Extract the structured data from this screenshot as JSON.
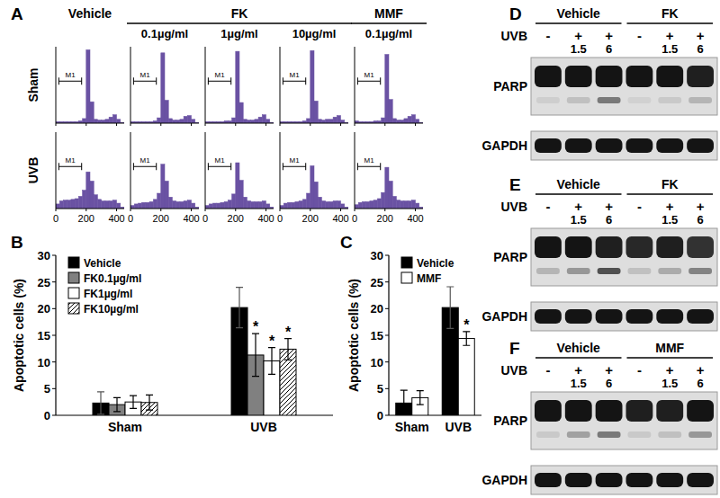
{
  "panel_labels": [
    "A",
    "B",
    "C"
  ],
  "panel_A": {
    "row_labels": [
      "Sham",
      "UVB"
    ],
    "column_labels": [
      "Vehicle",
      "0.1µg/ml",
      "1µg/ml",
      "10µg/ml",
      "0.1µg/ml"
    ],
    "column_groups": [
      {
        "text": "FK",
        "columns": [
          1,
          2,
          3
        ]
      },
      {
        "text": "MMF",
        "columns": [
          4
        ]
      }
    ]
  },
  "chart_data": [
    {
      "type": "histogram",
      "color": "#6a52a3",
      "bins": [
        0,
        25,
        50,
        75,
        100,
        125,
        150,
        175,
        200,
        225,
        250,
        275,
        300,
        325,
        350,
        375,
        400,
        425,
        450
      ],
      "counts": [
        2,
        2,
        2,
        2,
        2,
        2,
        3,
        6,
        96,
        28,
        5,
        4,
        4,
        5,
        8,
        11,
        5,
        1
      ],
      "xlim": [
        0,
        450
      ],
      "xticks": [
        0,
        200,
        400
      ],
      "ylim": [
        0,
        100
      ],
      "yticks": [],
      "tick_labels": false,
      "annotations": [
        {
          "text": "M1",
          "x": [
            20,
            170
          ]
        }
      ]
    },
    {
      "type": "histogram",
      "color": "#6a52a3",
      "bins": [
        0,
        25,
        50,
        75,
        100,
        125,
        150,
        175,
        200,
        225,
        250,
        275,
        300,
        325,
        350,
        375,
        400,
        425,
        450
      ],
      "counts": [
        2,
        2,
        2,
        2,
        2,
        2,
        3,
        7,
        92,
        30,
        6,
        4,
        4,
        5,
        9,
        10,
        5,
        1
      ],
      "xlim": [
        0,
        450
      ],
      "xticks": [
        0,
        200,
        400
      ],
      "ylim": [
        0,
        100
      ],
      "yticks": [],
      "tick_labels": false,
      "annotations": [
        {
          "text": "M1",
          "x": [
            20,
            170
          ]
        }
      ]
    },
    {
      "type": "histogram",
      "color": "#6a52a3",
      "bins": [
        0,
        25,
        50,
        75,
        100,
        125,
        150,
        175,
        200,
        225,
        250,
        275,
        300,
        325,
        350,
        375,
        400,
        425,
        450
      ],
      "counts": [
        2,
        2,
        2,
        2,
        2,
        3,
        3,
        7,
        94,
        27,
        5,
        4,
        4,
        5,
        8,
        11,
        5,
        1
      ],
      "xlim": [
        0,
        450
      ],
      "xticks": [
        0,
        200,
        400
      ],
      "ylim": [
        0,
        100
      ],
      "yticks": [],
      "tick_labels": false,
      "annotations": [
        {
          "text": "M1",
          "x": [
            20,
            170
          ]
        }
      ]
    },
    {
      "type": "histogram",
      "color": "#6a52a3",
      "bins": [
        0,
        25,
        50,
        75,
        100,
        125,
        150,
        175,
        200,
        225,
        250,
        275,
        300,
        325,
        350,
        375,
        400,
        425,
        450
      ],
      "counts": [
        2,
        2,
        2,
        2,
        2,
        2,
        3,
        6,
        95,
        29,
        5,
        4,
        5,
        5,
        8,
        10,
        4,
        1
      ],
      "xlim": [
        0,
        450
      ],
      "xticks": [
        0,
        200,
        400
      ],
      "ylim": [
        0,
        100
      ],
      "yticks": [],
      "tick_labels": false,
      "annotations": [
        {
          "text": "M1",
          "x": [
            20,
            170
          ]
        }
      ]
    },
    {
      "type": "histogram",
      "color": "#6a52a3",
      "bins": [
        0,
        25,
        50,
        75,
        100,
        125,
        150,
        175,
        200,
        225,
        250,
        275,
        300,
        325,
        350,
        375,
        400,
        425,
        450
      ],
      "counts": [
        3,
        2,
        2,
        2,
        2,
        3,
        3,
        7,
        90,
        31,
        6,
        4,
        4,
        6,
        9,
        11,
        5,
        1
      ],
      "xlim": [
        0,
        450
      ],
      "xticks": [
        0,
        200,
        400
      ],
      "ylim": [
        0,
        100
      ],
      "yticks": [],
      "tick_labels": false,
      "annotations": [
        {
          "text": "M1",
          "x": [
            20,
            170
          ]
        }
      ]
    },
    {
      "type": "histogram",
      "color": "#6a52a3",
      "bins": [
        0,
        25,
        50,
        75,
        100,
        125,
        150,
        175,
        200,
        225,
        250,
        275,
        300,
        325,
        350,
        375,
        400,
        425,
        450
      ],
      "counts": [
        6,
        10,
        11,
        11,
        12,
        13,
        16,
        24,
        48,
        36,
        18,
        12,
        10,
        10,
        10,
        11,
        7,
        2
      ],
      "xlim": [
        0,
        450
      ],
      "xticks": [
        0,
        200,
        400
      ],
      "ylim": [
        0,
        100
      ],
      "yticks": [],
      "tick_labels": "x",
      "annotations": [
        {
          "text": "M1",
          "x": [
            20,
            170
          ]
        }
      ]
    },
    {
      "type": "histogram",
      "color": "#6a52a3",
      "bins": [
        0,
        25,
        50,
        75,
        100,
        125,
        150,
        175,
        200,
        225,
        250,
        275,
        300,
        325,
        350,
        375,
        400,
        425,
        450
      ],
      "counts": [
        4,
        6,
        7,
        8,
        8,
        9,
        12,
        20,
        58,
        36,
        15,
        10,
        9,
        9,
        10,
        11,
        7,
        2
      ],
      "xlim": [
        0,
        450
      ],
      "xticks": [
        0,
        200,
        400
      ],
      "ylim": [
        0,
        100
      ],
      "yticks": [],
      "tick_labels": "x",
      "annotations": [
        {
          "text": "M1",
          "x": [
            20,
            170
          ]
        }
      ]
    },
    {
      "type": "histogram",
      "color": "#6a52a3",
      "bins": [
        0,
        25,
        50,
        75,
        100,
        125,
        150,
        175,
        200,
        225,
        250,
        275,
        300,
        325,
        350,
        375,
        400,
        425,
        450
      ],
      "counts": [
        4,
        6,
        7,
        7,
        8,
        9,
        11,
        19,
        60,
        37,
        15,
        10,
        9,
        9,
        9,
        10,
        6,
        2
      ],
      "xlim": [
        0,
        450
      ],
      "xticks": [
        0,
        200,
        400
      ],
      "ylim": [
        0,
        100
      ],
      "yticks": [],
      "tick_labels": "x",
      "annotations": [
        {
          "text": "M1",
          "x": [
            20,
            170
          ]
        }
      ]
    },
    {
      "type": "histogram",
      "color": "#6a52a3",
      "bins": [
        0,
        25,
        50,
        75,
        100,
        125,
        150,
        175,
        200,
        225,
        250,
        275,
        300,
        325,
        350,
        375,
        400,
        425,
        450
      ],
      "counts": [
        4,
        7,
        8,
        8,
        9,
        10,
        12,
        20,
        56,
        35,
        15,
        10,
        9,
        9,
        10,
        10,
        6,
        2
      ],
      "xlim": [
        0,
        450
      ],
      "xticks": [
        0,
        200,
        400
      ],
      "ylim": [
        0,
        100
      ],
      "yticks": [],
      "tick_labels": "x",
      "annotations": [
        {
          "text": "M1",
          "x": [
            20,
            170
          ]
        }
      ]
    },
    {
      "type": "histogram",
      "color": "#6a52a3",
      "bins": [
        0,
        25,
        50,
        75,
        100,
        125,
        150,
        175,
        200,
        225,
        250,
        275,
        300,
        325,
        350,
        375,
        400,
        425,
        450
      ],
      "counts": [
        5,
        8,
        9,
        9,
        10,
        11,
        13,
        21,
        54,
        36,
        16,
        11,
        10,
        10,
        10,
        11,
        7,
        2
      ],
      "xlim": [
        0,
        450
      ],
      "xticks": [
        0,
        200,
        400
      ],
      "ylim": [
        0,
        100
      ],
      "yticks": [],
      "tick_labels": "x",
      "annotations": [
        {
          "text": "M1",
          "x": [
            20,
            170
          ]
        }
      ]
    },
    {
      "type": "bar",
      "ylabel": "Apoptotic cells (%)",
      "categories": [
        "Sham",
        "UVB"
      ],
      "ylim": [
        0,
        30
      ],
      "yticks": [
        0,
        5,
        10,
        15,
        20,
        25,
        30
      ],
      "legend": "upper left",
      "series": [
        {
          "name": "Vehicle",
          "color": "#000000",
          "values": [
            2.3,
            20.2
          ],
          "errors": [
            2.1,
            3.8
          ],
          "annotations": [
            null,
            null
          ]
        },
        {
          "name": "FK0.1µg/ml",
          "color": "#808080",
          "values": [
            2.0,
            11.3
          ],
          "errors": [
            1.3,
            4.0
          ],
          "annotations": [
            null,
            "*"
          ]
        },
        {
          "name": "FK1µg/ml",
          "color": "#ffffff",
          "values": [
            2.5,
            10.2
          ],
          "errors": [
            1.2,
            2.5
          ],
          "annotations": [
            null,
            "*"
          ]
        },
        {
          "name": "FK10µg/ml",
          "color": "#ffffff",
          "line_style": "hatched",
          "values": [
            2.4,
            12.4
          ],
          "errors": [
            1.4,
            2.0
          ],
          "annotations": [
            null,
            "*"
          ]
        }
      ]
    },
    {
      "type": "bar",
      "ylabel": "Apoptotic cells (%)",
      "categories": [
        "Sham",
        "UVB"
      ],
      "ylim": [
        0,
        30
      ],
      "yticks": [
        0,
        5,
        10,
        15,
        20,
        25,
        30
      ],
      "legend": "upper left",
      "series": [
        {
          "name": "Vehicle",
          "color": "#000000",
          "values": [
            2.3,
            20.2
          ],
          "errors": [
            2.4,
            3.9
          ],
          "annotations": [
            null,
            null
          ]
        },
        {
          "name": "MMF",
          "color": "#ffffff",
          "values": [
            3.3,
            14.4
          ],
          "errors": [
            1.3,
            1.3
          ],
          "annotations": [
            null,
            "*"
          ]
        }
      ]
    }
  ],
  "blots": [
    {
      "label": "D",
      "row_label": "UVB",
      "uvb": [
        "-",
        "+",
        "+",
        "-",
        "+",
        "+"
      ],
      "time": [
        null,
        "1.5",
        "6",
        null,
        "1.5",
        "6"
      ],
      "groups": [
        {
          "name": "Vehicle",
          "lanes": [
            0,
            1,
            2
          ]
        },
        {
          "name": "FK",
          "lanes": [
            3,
            4,
            5
          ]
        }
      ],
      "bands": [
        {
          "name": "PARP",
          "intensity": [
            1,
            1,
            1,
            1,
            1,
            0.95
          ],
          "cleaved": [
            0.08,
            0.15,
            0.5,
            0.06,
            0.1,
            0.2
          ]
        },
        {
          "name": "GAPDH",
          "intensity": [
            1,
            1,
            1,
            1,
            1,
            1
          ]
        }
      ]
    },
    {
      "label": "E",
      "row_label": "UVB",
      "uvb": [
        "-",
        "+",
        "+",
        "-",
        "+",
        "+"
      ],
      "time": [
        null,
        "1.5",
        "6",
        null,
        "1.5",
        "6"
      ],
      "groups": [
        {
          "name": "Vehicle",
          "lanes": [
            0,
            1,
            2
          ]
        },
        {
          "name": "FK",
          "lanes": [
            3,
            4,
            5
          ]
        }
      ],
      "bands": [
        {
          "name": "PARP",
          "intensity": [
            1,
            1,
            0.95,
            0.9,
            0.95,
            0.85
          ],
          "cleaved": [
            0.2,
            0.35,
            0.7,
            0.15,
            0.25,
            0.45
          ]
        },
        {
          "name": "GAPDH",
          "intensity": [
            1,
            1,
            1,
            1,
            1,
            1
          ]
        }
      ]
    },
    {
      "label": "F",
      "row_label": "UVB",
      "uvb": [
        "-",
        "+",
        "+",
        "-",
        "+",
        "+"
      ],
      "time": [
        null,
        "1.5",
        "6",
        null,
        "1.5",
        "6"
      ],
      "groups": [
        {
          "name": "Vehicle",
          "lanes": [
            0,
            1,
            2
          ]
        },
        {
          "name": "MMF",
          "lanes": [
            3,
            4,
            5
          ]
        }
      ],
      "bands": [
        {
          "name": "PARP",
          "intensity": [
            1,
            1,
            1,
            0.95,
            0.95,
            1
          ],
          "cleaved": [
            0.1,
            0.3,
            0.5,
            0.1,
            0.15,
            0.35
          ]
        },
        {
          "name": "GAPDH",
          "intensity": [
            1,
            1,
            1,
            1,
            1,
            1
          ]
        }
      ]
    }
  ]
}
